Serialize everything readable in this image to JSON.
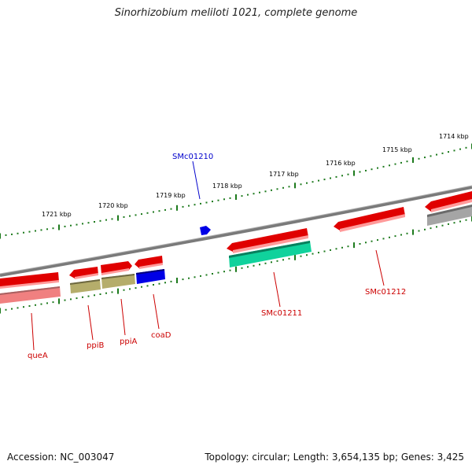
{
  "title": "Sinorhizobium meliloti 1021, complete genome",
  "footer": {
    "accession": "Accession: NC_003047",
    "stats": "Topology: circular; Length: 3,654,135 bp; Genes: 3,425"
  },
  "colors": {
    "backbone": "#7a7a7a",
    "tick": "#1d7a1d",
    "cds": "#e00000",
    "pseudo": "#f08080",
    "teal": "#10d29c",
    "olive": "#b5ad6b",
    "blue": "#0000e6",
    "gray": "#a5a5a5",
    "label_red": "#cc0000",
    "label_blue": "#0000cc"
  },
  "scale": {
    "labels": [
      "1721 kbp",
      "1720 kbp",
      "1719 kbp",
      "1718 kbp",
      "1717 kbp",
      "1716 kbp",
      "1715 kbp",
      "1714 kbp"
    ]
  },
  "genes": {
    "labels": {
      "queA": "queA",
      "ppiB": "ppiB",
      "ppiA": "ppiA",
      "coaD": "coaD",
      "smc01211": "SMc01211",
      "smc01212": "SMc01212",
      "smc01210": "SMc01210"
    }
  }
}
